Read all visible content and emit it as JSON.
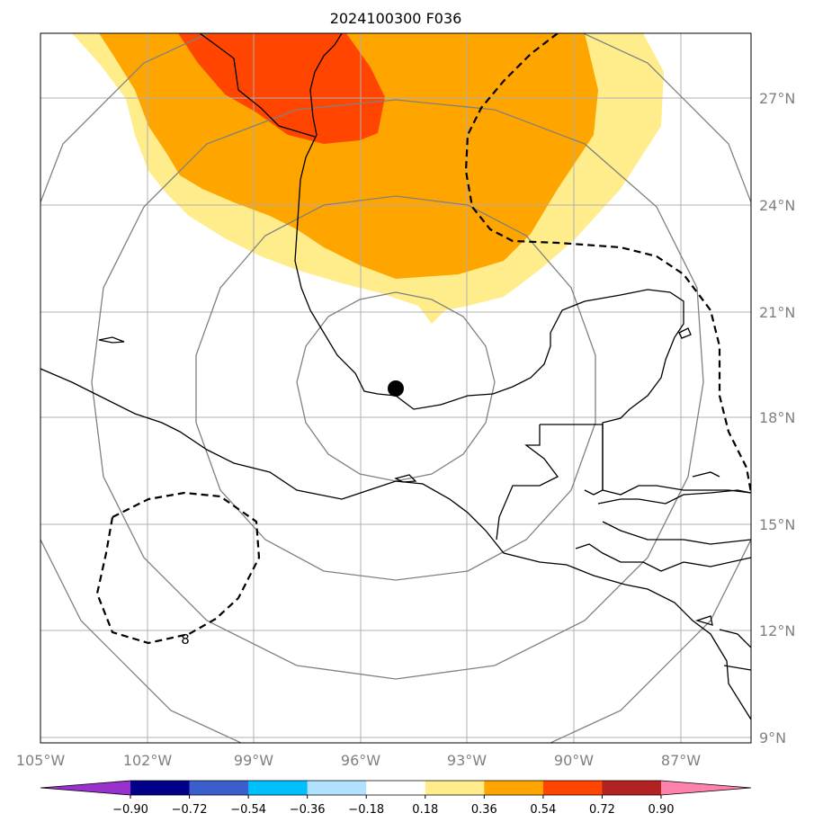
{
  "title": "2024100300 F036",
  "lon_labels": [
    "105°W",
    "102°W",
    "99°W",
    "96°W",
    "93°W",
    "90°W",
    "87°W"
  ],
  "lat_labels": [
    "27°N",
    "24°N",
    "21°N",
    "18°N",
    "15°N",
    "12°N",
    "9°N"
  ],
  "contour_label": "8",
  "colorbar": {
    "ticks": [
      "−0.90",
      "−0.72",
      "−0.54",
      "−0.36",
      "−0.18",
      "0.18",
      "0.36",
      "0.54",
      "0.72",
      "0.90"
    ],
    "colors": [
      "#9932cc",
      "#00008b",
      "#3a5fcd",
      "#00bfff",
      "#b0e2ff",
      "#ffffff",
      "#ffec8b",
      "#ffa500",
      "#ff4500",
      "#b22222",
      "#ff82ab"
    ]
  },
  "center_marker": {
    "lon": -95.0,
    "lat": 18.8
  }
}
